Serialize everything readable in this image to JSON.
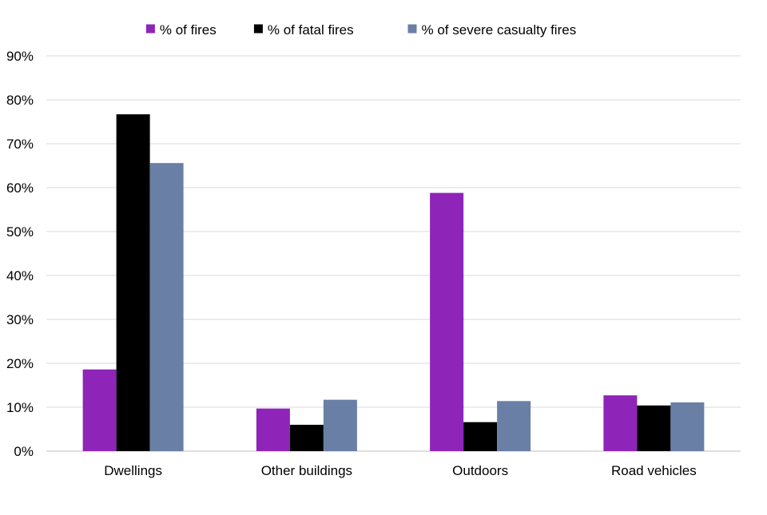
{
  "chart_data": {
    "type": "bar",
    "title": "",
    "xlabel": "",
    "ylabel": "",
    "categories": [
      "Dwellings",
      "Other buildings",
      "Outdoors",
      "Road vehicles"
    ],
    "series": [
      {
        "name": "% of fires",
        "color": "#8e24b8",
        "values": [
          18.6,
          9.7,
          58.8,
          12.7
        ]
      },
      {
        "name": "% of fatal fires",
        "color": "#000000",
        "values": [
          76.7,
          6.0,
          6.6,
          10.4
        ]
      },
      {
        "name": "% of severe casualty fires",
        "color": "#6a7fa6",
        "values": [
          65.6,
          11.7,
          11.4,
          11.1
        ]
      }
    ],
    "ylim": [
      0,
      90
    ],
    "yticks": [
      0,
      10,
      20,
      30,
      40,
      50,
      60,
      70,
      80,
      90
    ],
    "ytick_labels": [
      "0%",
      "10%",
      "20%",
      "30%",
      "40%",
      "50%",
      "60%",
      "70%",
      "80%",
      "90%"
    ],
    "grid": true,
    "legend_position": "top-center"
  }
}
